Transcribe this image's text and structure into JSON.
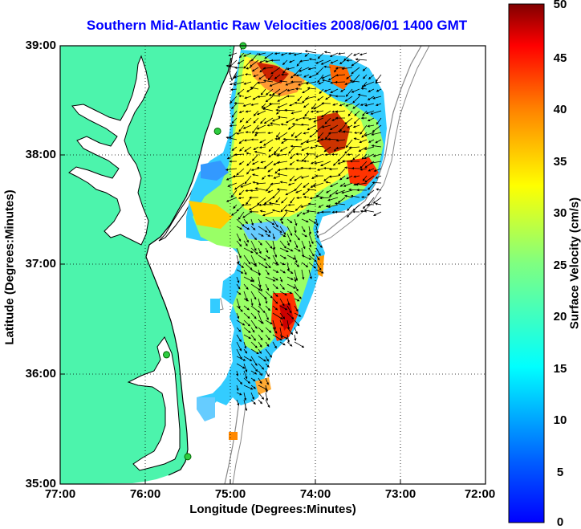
{
  "title": "Southern Mid-Atlantic Raw Velocities 2008/06/01 1400 GMT",
  "x_axis": {
    "label": "Longitude (Degrees:Minutes)",
    "ticks": [
      "77:00",
      "76:00",
      "75:00",
      "74:00",
      "73:00",
      "72:00"
    ]
  },
  "y_axis": {
    "label": "Latitude (Degrees:Minutes)",
    "ticks": [
      "39:00",
      "38:00",
      "37:00",
      "36:00",
      "35:00"
    ]
  },
  "colorbar": {
    "label": "Surface Velocity (cm/s)",
    "ticks": [
      "50",
      "45",
      "40",
      "35",
      "30",
      "25",
      "20",
      "15",
      "10",
      "5",
      "0"
    ],
    "range": [
      0,
      50
    ],
    "colormap": "jet"
  },
  "colors": {
    "land": "#4cf4ac",
    "title": "#0000ff",
    "coastline": "#000000",
    "site_marker": "#2ecc40"
  },
  "map": {
    "lon_range": [
      -77.0,
      -72.0
    ],
    "lat_range": [
      35.0,
      39.0
    ],
    "grid": "dotted",
    "vector_field": "surface current arrows"
  },
  "chart_data": {
    "type": "heatmap",
    "title": "Southern Mid-Atlantic Raw Velocities 2008/06/01 1400 GMT",
    "xlabel": "Longitude (Degrees:Minutes)",
    "ylabel": "Latitude (Degrees:Minutes)",
    "xlim": [
      -77.0,
      -72.0
    ],
    "ylim": [
      35.0,
      39.0
    ],
    "colorbar": {
      "label": "Surface Velocity (cm/s)",
      "min": 0,
      "max": 50
    },
    "hf_radar_sites": [
      {
        "lon": -74.85,
        "lat": 39.0
      },
      {
        "lon": -75.15,
        "lat": 38.22
      },
      {
        "lon": -75.75,
        "lat": 36.18
      },
      {
        "lon": -75.5,
        "lat": 35.25
      }
    ],
    "velocity_hotspots": [
      {
        "lon": -74.2,
        "lat": 38.75,
        "speed": 45
      },
      {
        "lon": -73.8,
        "lat": 38.8,
        "speed": 40
      },
      {
        "lon": -73.7,
        "lat": 38.2,
        "speed": 42
      },
      {
        "lon": -73.3,
        "lat": 37.85,
        "speed": 45
      },
      {
        "lon": -74.5,
        "lat": 36.45,
        "speed": 48
      },
      {
        "lon": -75.05,
        "lat": 38.6,
        "speed": 33
      },
      {
        "lon": -75.4,
        "lat": 37.6,
        "speed": 30
      }
    ]
  }
}
